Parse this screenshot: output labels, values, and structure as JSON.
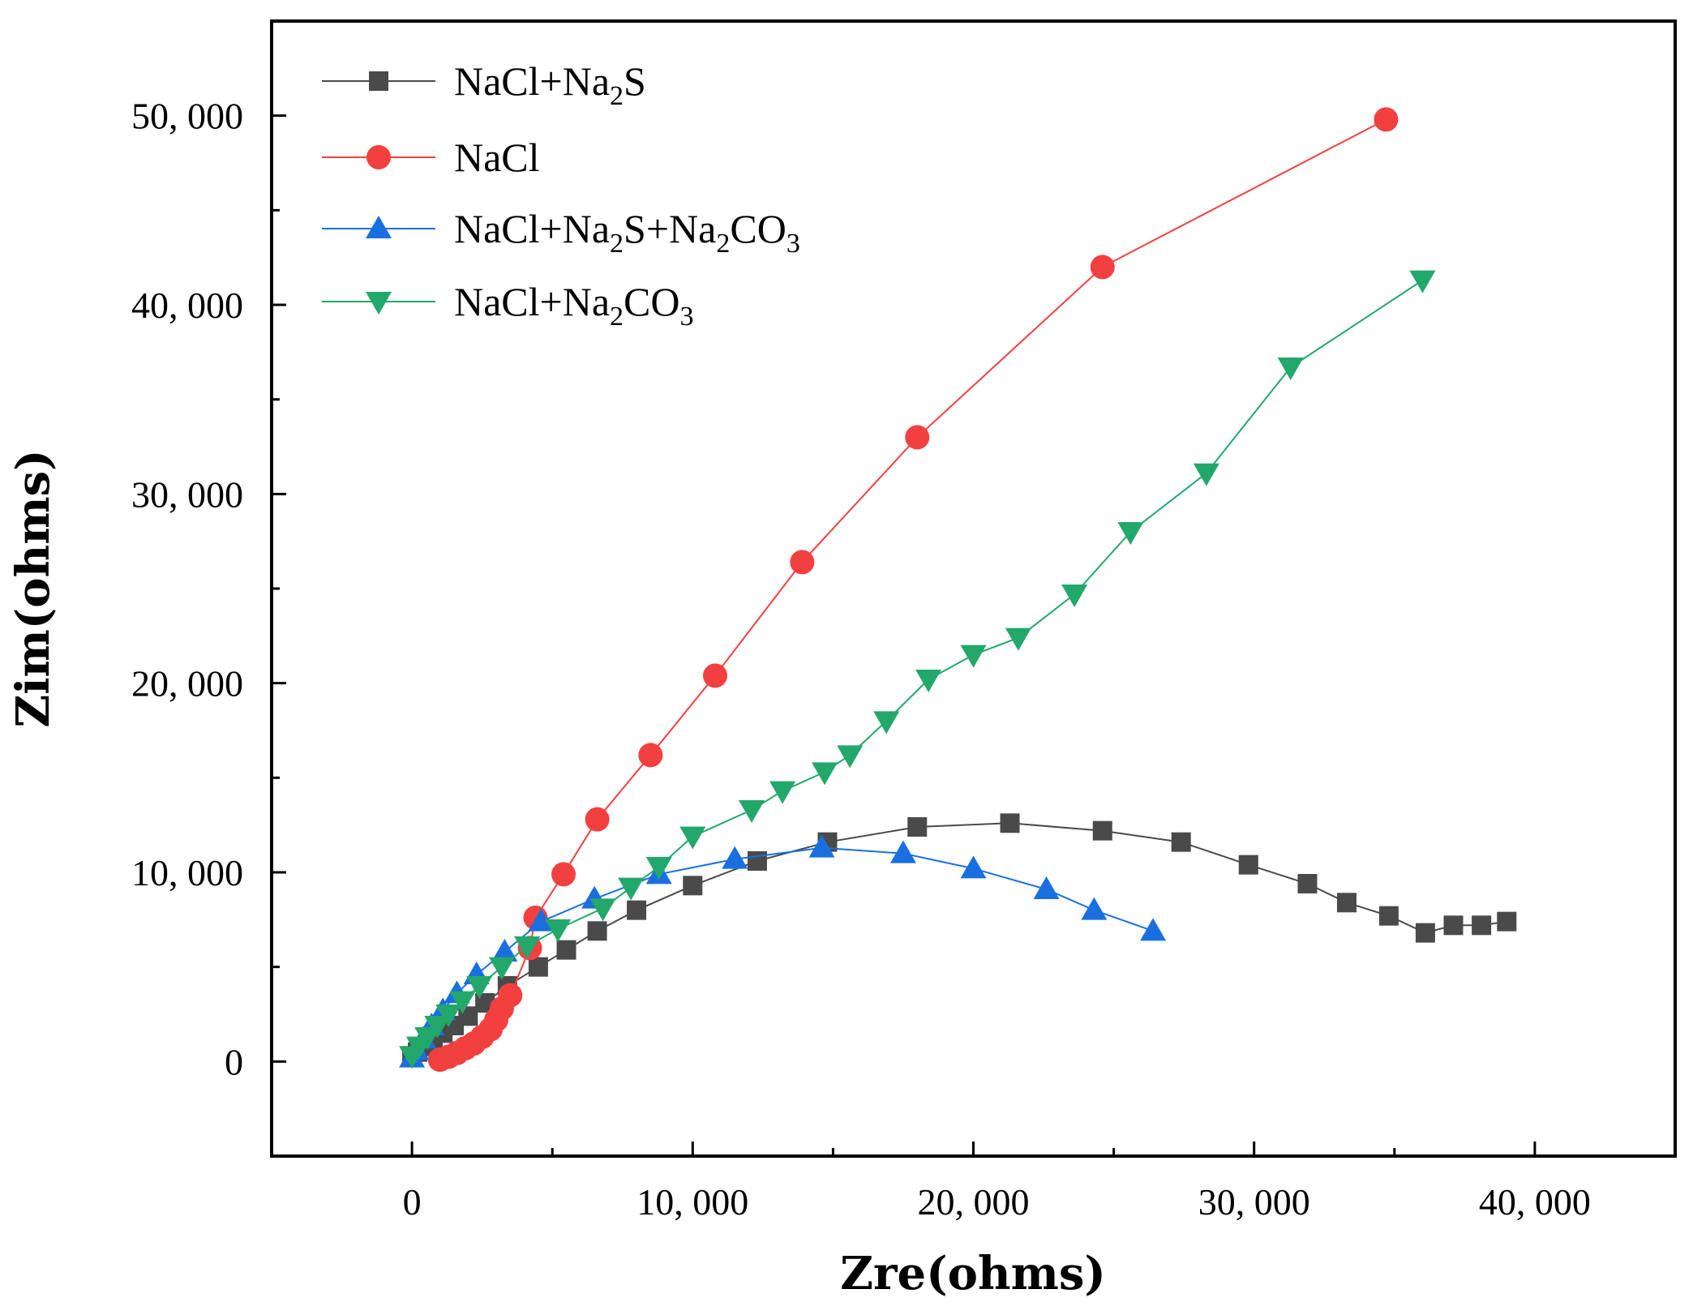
{
  "chart_data": {
    "type": "scatter",
    "xlabel": "Zre(ohms)",
    "ylabel": "Zim(ohms)",
    "xlim": [
      -5000,
      45000
    ],
    "ylim": [
      -5000,
      55000
    ],
    "xticks": [
      0,
      10000,
      20000,
      30000,
      40000
    ],
    "xtick_labels": [
      "0",
      "10, 000",
      "20, 000",
      "30, 000",
      "40, 000"
    ],
    "yticks": [
      0,
      10000,
      20000,
      30000,
      40000,
      50000
    ],
    "ytick_labels": [
      "0",
      "10, 000",
      "20, 000",
      "30, 000",
      "40, 000",
      "50, 000"
    ],
    "legend_position": "top-left",
    "series": [
      {
        "name": "NaCl+Na2S",
        "legend_parts": [
          [
            "NaCl+Na",
            "n"
          ],
          [
            "2",
            "sub"
          ],
          [
            "S",
            "n"
          ]
        ],
        "color": "#4a4a4a",
        "marker": "square",
        "x": [
          0,
          200,
          450,
          750,
          1100,
          1500,
          2000,
          2600,
          3400,
          4500,
          5500,
          6600,
          8000,
          10000,
          12300,
          14800,
          18000,
          21300,
          24600,
          27400,
          29800,
          31900,
          33300,
          34800,
          36100,
          37100,
          38100,
          39000
        ],
        "y": [
          300,
          500,
          800,
          1100,
          1500,
          1900,
          2400,
          3100,
          4000,
          5000,
          5900,
          6900,
          8000,
          9300,
          10600,
          11600,
          12400,
          12600,
          12200,
          11600,
          10400,
          9400,
          8400,
          7700,
          6800,
          7200,
          7200,
          7400
        ]
      },
      {
        "name": "NaCl",
        "legend_parts": [
          [
            "NaCl",
            "n"
          ]
        ],
        "color": "#f24040",
        "marker": "circle",
        "x": [
          1000,
          1300,
          1600,
          1900,
          2200,
          2500,
          2800,
          3000,
          3200,
          3500,
          4200,
          4400,
          5400,
          6600,
          8500,
          10800,
          13900,
          18000,
          24600,
          34700
        ],
        "y": [
          100,
          250,
          450,
          700,
          950,
          1300,
          1700,
          2200,
          2800,
          3500,
          6000,
          7600,
          9900,
          12800,
          16200,
          20400,
          26400,
          33000,
          42000,
          49800
        ]
      },
      {
        "name": "NaCl+Na2S+Na2CO3",
        "legend_parts": [
          [
            "NaCl+Na",
            "n"
          ],
          [
            "2",
            "sub"
          ],
          [
            "S+Na",
            "n"
          ],
          [
            "2",
            "sub"
          ],
          [
            "CO",
            "n"
          ],
          [
            "3",
            "sub"
          ]
        ],
        "color": "#1a6fe0",
        "marker": "triangle-up",
        "x": [
          0,
          150,
          400,
          700,
          1100,
          1600,
          2300,
          3300,
          4600,
          6500,
          8800,
          11500,
          14600,
          17500,
          20000,
          22600,
          24300,
          26400
        ],
        "y": [
          200,
          600,
          1200,
          1900,
          2700,
          3600,
          4600,
          5800,
          7400,
          8600,
          9900,
          10700,
          11300,
          11000,
          10200,
          9100,
          8000,
          6900
        ]
      },
      {
        "name": "NaCl+Na2CO3",
        "legend_parts": [
          [
            "NaCl+Na",
            "n"
          ],
          [
            "2",
            "sub"
          ],
          [
            "CO",
            "n"
          ],
          [
            "3",
            "sub"
          ]
        ],
        "color": "#22a86a",
        "marker": "triangle-down",
        "x": [
          0,
          250,
          550,
          900,
          1300,
          1800,
          2400,
          3200,
          4100,
          5200,
          6800,
          7800,
          8800,
          10000,
          12100,
          13200,
          14700,
          15600,
          16900,
          18400,
          20000,
          21600,
          23600,
          25600,
          28300,
          31300,
          36000
        ],
        "y": [
          300,
          800,
          1300,
          1900,
          2500,
          3200,
          4000,
          5000,
          6100,
          7000,
          8100,
          9200,
          10300,
          11900,
          13300,
          14300,
          15300,
          16200,
          18000,
          20200,
          21500,
          22400,
          24700,
          28000,
          31100,
          36700,
          41300
        ]
      }
    ]
  }
}
